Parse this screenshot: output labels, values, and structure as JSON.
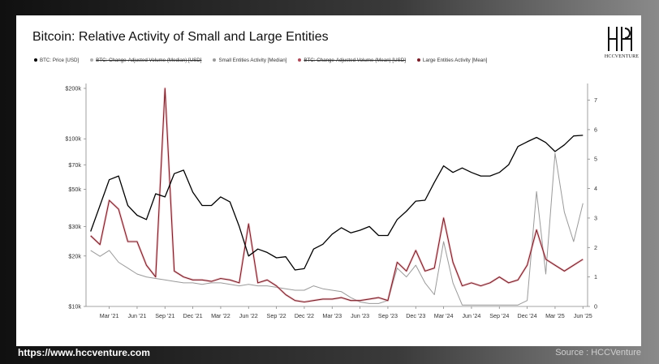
{
  "footer": {
    "url": "https://www.hccventure.com",
    "source": "Source : HCCVenture"
  },
  "brand": {
    "logo_text": "HCCVENTURE"
  },
  "colors": {
    "price": "#000000",
    "small": "#9a9a9a",
    "large": "#7a1f28",
    "large_light": "#e7a3ad"
  },
  "chart_data": {
    "type": "line",
    "title": "Bitcoin: Relative Activity of Small and Large Entities",
    "legend": [
      {
        "name": "BTC: Price [USD]",
        "color": "#000000",
        "strike": false
      },
      {
        "name": "BTC: Change-Adjusted Volume (Median) [USD]",
        "color": "#b0b0b0",
        "strike": true
      },
      {
        "name": "Small Entities Activity [Median]",
        "color": "#9a9a9a",
        "strike": false
      },
      {
        "name": "BTC: Change-Adjusted Volume (Mean) [USD]",
        "color": "#b04a5a",
        "strike": true
      },
      {
        "name": "Large Entities Activity [Mean]",
        "color": "#7a1f28",
        "strike": false
      }
    ],
    "x_ticks": [
      "Mar '21",
      "Jun '21",
      "Sep '21",
      "Dec '21",
      "Mar '22",
      "Jun '22",
      "Sep '22",
      "Dec '22",
      "Mar '23",
      "Jun '23",
      "Sep '23",
      "Dec '23",
      "Mar '24",
      "Jun '24",
      "Sep '24",
      "Dec '24",
      "Mar '25",
      "Jun '25"
    ],
    "x_range": [
      "2021-01",
      "2025-06"
    ],
    "y_left": {
      "scale": "log",
      "range": [
        10000,
        200000
      ],
      "ticks": [
        "$10k",
        "$20k",
        "$30k",
        "$50k",
        "$70k",
        "$100k",
        "$200k"
      ],
      "tick_values": [
        10000,
        20000,
        30000,
        50000,
        70000,
        100000,
        200000
      ]
    },
    "y_right": {
      "range": [
        0,
        7.4
      ],
      "ticks": [
        "0",
        "1",
        "2",
        "3",
        "4",
        "5",
        "6",
        "7"
      ],
      "tick_values": [
        0,
        1,
        2,
        3,
        4,
        5,
        6,
        7
      ]
    },
    "series": [
      {
        "name": "BTC: Price [USD]",
        "axis": "left",
        "x": [
          "2021-01",
          "2021-02",
          "2021-03",
          "2021-04",
          "2021-05",
          "2021-06",
          "2021-07",
          "2021-08",
          "2021-09",
          "2021-10",
          "2021-11",
          "2021-12",
          "2022-01",
          "2022-02",
          "2022-03",
          "2022-04",
          "2022-05",
          "2022-06",
          "2022-07",
          "2022-08",
          "2022-09",
          "2022-10",
          "2022-11",
          "2022-12",
          "2023-01",
          "2023-02",
          "2023-03",
          "2023-04",
          "2023-05",
          "2023-06",
          "2023-07",
          "2023-08",
          "2023-09",
          "2023-10",
          "2023-11",
          "2023-12",
          "2024-01",
          "2024-02",
          "2024-03",
          "2024-04",
          "2024-05",
          "2024-06",
          "2024-07",
          "2024-08",
          "2024-09",
          "2024-10",
          "2024-11",
          "2024-12",
          "2025-01",
          "2025-02",
          "2025-03",
          "2025-04",
          "2025-05",
          "2025-06"
        ],
        "values": [
          28000,
          40000,
          57000,
          60000,
          40000,
          35000,
          33000,
          47000,
          45000,
          62000,
          65000,
          48000,
          40000,
          40000,
          45000,
          42000,
          30000,
          20000,
          22000,
          21000,
          19500,
          19800,
          16500,
          16800,
          22000,
          23500,
          27000,
          29500,
          27500,
          28500,
          30000,
          26500,
          26500,
          33000,
          37000,
          42500,
          43000,
          55000,
          69000,
          63000,
          67000,
          63000,
          60000,
          60000,
          63000,
          70000,
          90000,
          96000,
          102000,
          95000,
          84000,
          92000,
          104000,
          105000
        ]
      },
      {
        "name": "Small Entities Activity [Median]",
        "axis": "right",
        "x": [
          "2021-01",
          "2021-02",
          "2021-03",
          "2021-04",
          "2021-05",
          "2021-06",
          "2021-07",
          "2021-08",
          "2021-09",
          "2021-10",
          "2021-11",
          "2021-12",
          "2022-01",
          "2022-02",
          "2022-03",
          "2022-04",
          "2022-05",
          "2022-06",
          "2022-07",
          "2022-08",
          "2022-09",
          "2022-10",
          "2022-11",
          "2022-12",
          "2023-01",
          "2023-02",
          "2023-03",
          "2023-04",
          "2023-05",
          "2023-06",
          "2023-07",
          "2023-08",
          "2023-09",
          "2023-10",
          "2023-11",
          "2023-12",
          "2024-01",
          "2024-02",
          "2024-03",
          "2024-04",
          "2024-05",
          "2024-06",
          "2024-07",
          "2024-08",
          "2024-09",
          "2024-10",
          "2024-11",
          "2024-12",
          "2025-01",
          "2025-02",
          "2025-03",
          "2025-04",
          "2025-05",
          "2025-06"
        ],
        "values": [
          1.9,
          1.7,
          1.9,
          1.5,
          1.3,
          1.1,
          1.0,
          0.95,
          0.9,
          0.85,
          0.8,
          0.8,
          0.75,
          0.8,
          0.8,
          0.75,
          0.7,
          0.75,
          0.7,
          0.7,
          0.65,
          0.6,
          0.55,
          0.55,
          0.7,
          0.6,
          0.55,
          0.5,
          0.3,
          0.15,
          0.1,
          0.1,
          0.2,
          1.3,
          1.0,
          1.4,
          0.8,
          0.4,
          2.2,
          0.8,
          0.05,
          0.05,
          0.05,
          0.05,
          0.05,
          0.05,
          0.05,
          0.2,
          3.9,
          1.1,
          5.2,
          3.2,
          2.2,
          3.5
        ]
      },
      {
        "name": "Large Entities Activity [Mean]",
        "axis": "right",
        "x": [
          "2021-01",
          "2021-02",
          "2021-03",
          "2021-04",
          "2021-05",
          "2021-06",
          "2021-07",
          "2021-08",
          "2021-09",
          "2021-10",
          "2021-11",
          "2021-12",
          "2022-01",
          "2022-02",
          "2022-03",
          "2022-04",
          "2022-05",
          "2022-06",
          "2022-07",
          "2022-08",
          "2022-09",
          "2022-10",
          "2022-11",
          "2022-12",
          "2023-01",
          "2023-02",
          "2023-03",
          "2023-04",
          "2023-05",
          "2023-06",
          "2023-07",
          "2023-08",
          "2023-09",
          "2023-10",
          "2023-11",
          "2023-12",
          "2024-01",
          "2024-02",
          "2024-03",
          "2024-04",
          "2024-05",
          "2024-06",
          "2024-07",
          "2024-08",
          "2024-09",
          "2024-10",
          "2024-11",
          "2024-12",
          "2025-01",
          "2025-02",
          "2025-03",
          "2025-04",
          "2025-05",
          "2025-06"
        ],
        "values": [
          2.4,
          2.1,
          3.6,
          3.3,
          2.2,
          2.2,
          1.4,
          1.0,
          7.4,
          1.2,
          1.0,
          0.9,
          0.9,
          0.85,
          0.95,
          0.9,
          0.8,
          2.8,
          0.8,
          0.9,
          0.7,
          0.4,
          0.2,
          0.15,
          0.2,
          0.25,
          0.25,
          0.3,
          0.2,
          0.2,
          0.25,
          0.3,
          0.2,
          1.5,
          1.2,
          1.9,
          1.2,
          1.3,
          3.0,
          1.5,
          0.7,
          0.8,
          0.7,
          0.8,
          1.0,
          0.8,
          0.9,
          1.4,
          2.6,
          1.6,
          1.4,
          1.2,
          1.4,
          1.6
        ]
      }
    ]
  }
}
